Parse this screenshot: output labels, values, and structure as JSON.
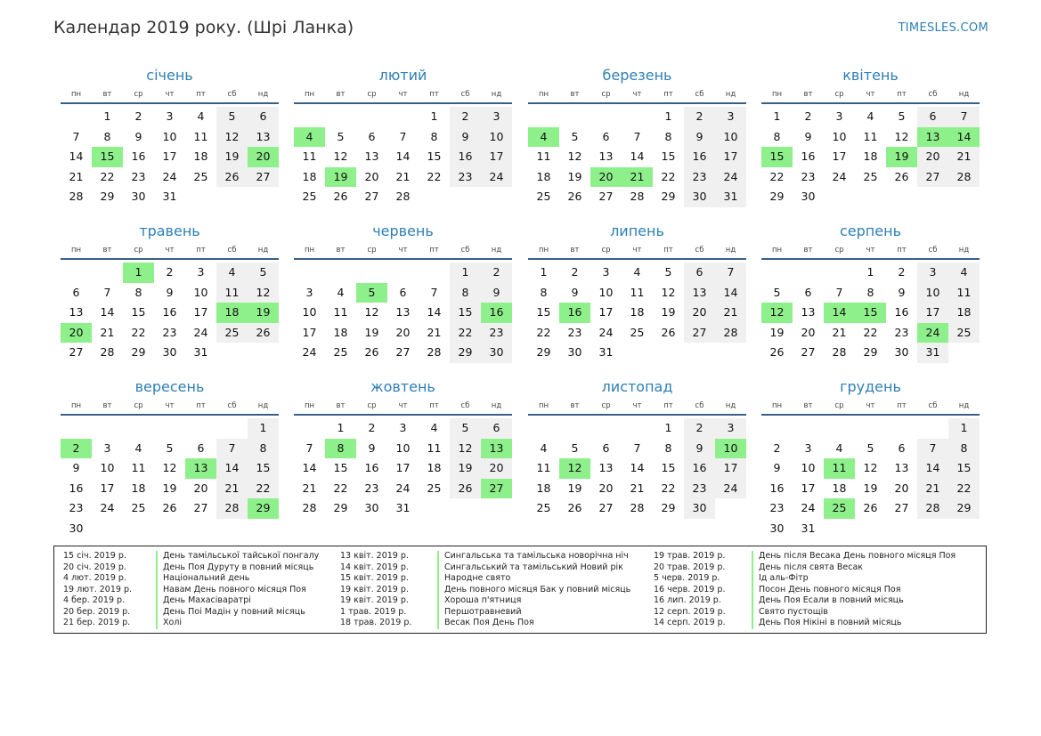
{
  "header": {
    "title": "Календар 2019 року. (Шрі Ланка)",
    "site": "TIMESLES.COM"
  },
  "weekdays": [
    "пн",
    "вт",
    "ср",
    "чт",
    "пт",
    "сб",
    "нд"
  ],
  "months": [
    {
      "name": "січень",
      "offset": 1,
      "days": 31,
      "holidays": [
        15,
        20
      ]
    },
    {
      "name": "лютий",
      "offset": 4,
      "days": 28,
      "holidays": [
        4,
        19
      ]
    },
    {
      "name": "березень",
      "offset": 4,
      "days": 31,
      "holidays": [
        4,
        20,
        21
      ]
    },
    {
      "name": "квітень",
      "offset": 0,
      "days": 30,
      "holidays": [
        13,
        14,
        15,
        19
      ]
    },
    {
      "name": "травень",
      "offset": 2,
      "days": 31,
      "holidays": [
        1,
        18,
        19,
        20
      ]
    },
    {
      "name": "червень",
      "offset": 5,
      "days": 30,
      "holidays": [
        5,
        16
      ]
    },
    {
      "name": "липень",
      "offset": 0,
      "days": 31,
      "holidays": [
        16
      ]
    },
    {
      "name": "серпень",
      "offset": 3,
      "days": 31,
      "holidays": [
        12,
        14,
        15,
        24
      ]
    },
    {
      "name": "вересень",
      "offset": 6,
      "days": 30,
      "holidays": [
        2,
        13,
        29
      ]
    },
    {
      "name": "жовтень",
      "offset": 1,
      "days": 31,
      "holidays": [
        8,
        13,
        27
      ]
    },
    {
      "name": "листопад",
      "offset": 4,
      "days": 30,
      "holidays": [
        10,
        12
      ]
    },
    {
      "name": "грудень",
      "offset": 6,
      "days": 31,
      "holidays": [
        11,
        25
      ]
    }
  ],
  "legend": [
    {
      "dates": [
        "15 січ. 2019 р.",
        "20 січ. 2019 р.",
        "4 лют. 2019 р.",
        "19 лют. 2019 р.",
        "4 бер. 2019 р.",
        "20 бер. 2019 р.",
        "21 бер. 2019 р."
      ],
      "names": [
        "День тамільської тайської понгалу",
        "День Поя Дуруту в повний місяць",
        "Національний день",
        "Навам День повного місяця Поя",
        "День Махасіваратрі",
        "День Поі Мадін у повний місяць",
        "Холі"
      ]
    },
    {
      "dates": [
        "13 квіт. 2019 р.",
        "14 квіт. 2019 р.",
        "15 квіт. 2019 р.",
        "19 квіт. 2019 р.",
        "19 квіт. 2019 р.",
        "1 трав. 2019 р.",
        "18 трав. 2019 р."
      ],
      "names": [
        "Сингальська та тамільська новорічна ніч",
        "Сингальський та тамільський Новий рік",
        "Народне свято",
        "День повного місяця Бак у повний місяць",
        "Хороша п'ятниця",
        "Першотравневий",
        "Весак Поя День Поя"
      ]
    },
    {
      "dates": [
        "19 трав. 2019 р.",
        "20 трав. 2019 р.",
        "5 черв. 2019 р.",
        "16 черв. 2019 р.",
        "16 лип. 2019 р.",
        "12 серп. 2019 р.",
        "14 серп. 2019 р."
      ],
      "names": [
        "День після Весака День повного місяця Поя",
        "День після свята Весак",
        "Ід аль-Фітр",
        "Посон День повного місяця Поя",
        "День Поя Есали в повний місяць",
        "Свято пустощів",
        "День Поя Нікіні в повний місяць"
      ]
    }
  ]
}
